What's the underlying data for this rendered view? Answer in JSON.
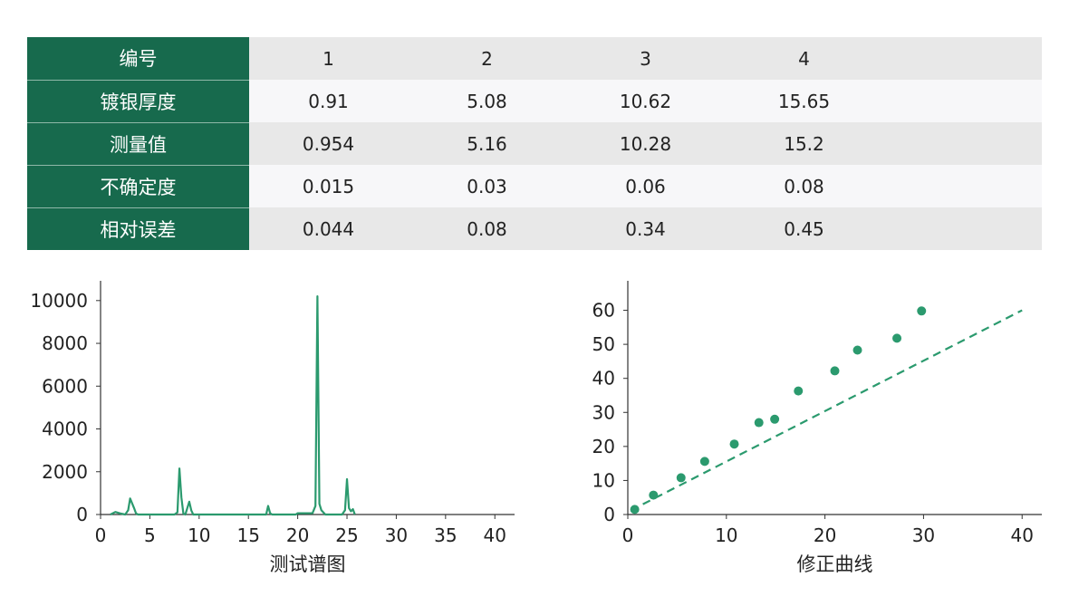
{
  "table": {
    "header_label": "编号",
    "columns": [
      "1",
      "2",
      "3",
      "4"
    ],
    "rows": [
      {
        "label": "镀银厚度",
        "values": [
          "0.91",
          "5.08",
          "10.62",
          "15.65"
        ]
      },
      {
        "label": "测量值",
        "values": [
          "0.954",
          "5.16",
          "10.28",
          "15.2"
        ]
      },
      {
        "label": "不确定度",
        "values": [
          "0.015",
          "0.03",
          "0.06",
          "0.08"
        ]
      },
      {
        "label": "相对误差",
        "values": [
          "0.044",
          "0.08",
          "0.34",
          "0.45"
        ]
      }
    ]
  },
  "colors": {
    "header_green": "#176a4d",
    "series_green": "#2b9a6e",
    "row_light": "#e8e8e8",
    "row_lighter": "#f7f7f9"
  },
  "chart_data": [
    {
      "type": "line",
      "title": "",
      "xlabel": "测试谱图",
      "ylabel": "",
      "xlim": [
        0,
        42
      ],
      "ylim": [
        0,
        10500
      ],
      "xticks": [
        0,
        5,
        10,
        15,
        20,
        25,
        30,
        35,
        40
      ],
      "yticks": [
        0,
        2000,
        4000,
        6000,
        8000,
        10000
      ],
      "grid": false,
      "series": [
        {
          "x": [
            1.0,
            1.5,
            2.0,
            2.5,
            2.8,
            3.0,
            3.4,
            3.6,
            3.8,
            7.5,
            7.8,
            8.0,
            8.2,
            8.4,
            8.6,
            8.8,
            9.0,
            9.2,
            9.4,
            16.8,
            17.0,
            17.2,
            17.4,
            19.8,
            20.0,
            21.5,
            21.8,
            22.0,
            22.2,
            22.4,
            22.8,
            24.5,
            24.8,
            25.0,
            25.2,
            25.4,
            25.6,
            25.8
          ],
          "y": [
            0,
            120,
            50,
            0,
            200,
            750,
            300,
            50,
            0,
            0,
            100,
            2150,
            800,
            50,
            0,
            300,
            600,
            200,
            0,
            0,
            400,
            60,
            0,
            0,
            60,
            60,
            400,
            10200,
            500,
            200,
            0,
            0,
            200,
            1650,
            300,
            150,
            250,
            0
          ]
        }
      ]
    },
    {
      "type": "scatter",
      "title": "",
      "xlabel": "修正曲线",
      "ylabel": "",
      "xlim": [
        0,
        42
      ],
      "ylim": [
        0,
        66
      ],
      "xticks": [
        0,
        10,
        20,
        30,
        40
      ],
      "yticks": [
        0,
        10,
        20,
        30,
        40,
        50,
        60
      ],
      "grid": false,
      "series": [
        {
          "x": [
            0.7,
            2.6,
            5.4,
            7.8,
            10.8,
            13.3,
            14.9,
            17.3,
            21.0,
            23.3,
            27.3,
            29.8
          ],
          "y": [
            1.5,
            5.7,
            10.8,
            15.6,
            20.7,
            27.0,
            28.0,
            36.3,
            42.2,
            48.3,
            51.8,
            59.8
          ],
          "fit_line": {
            "style": "dashed",
            "x": [
              0.3,
              40.0
            ],
            "y": [
              1.2,
              60.0
            ]
          }
        }
      ]
    }
  ]
}
